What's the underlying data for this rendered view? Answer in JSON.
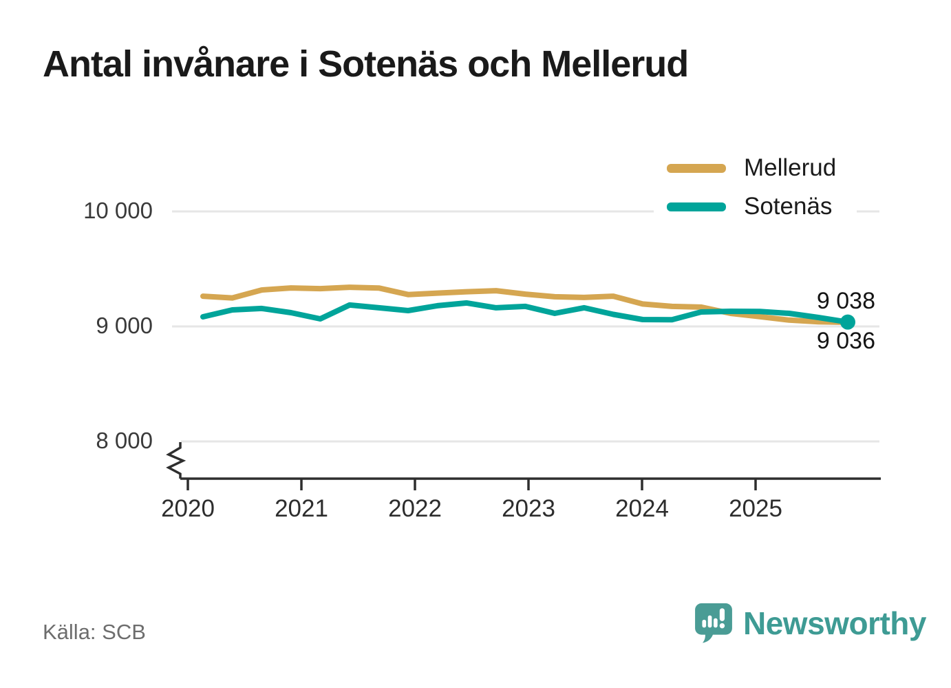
{
  "title": "Antal invånare i Sotenäs och Mellerud",
  "source": "Källa: SCB",
  "brand": {
    "name": "Newsworthy",
    "text_color": "#3E9B94",
    "bubble_color": "#4A9C95",
    "logo_icon": "speech-bubble-bar-chart-exclamation"
  },
  "end_labels": {
    "top": "9 038",
    "bottom": "9 036"
  },
  "chart_data": {
    "type": "line",
    "title": "Antal invånare i Sotenäs och Mellerud",
    "x": [
      "2020-K1",
      "2020-K2",
      "2020-K3",
      "2020-K4",
      "2021-K1",
      "2021-K2",
      "2021-K3",
      "2021-K4",
      "2022-K1",
      "2022-K2",
      "2022-K3",
      "2022-K4",
      "2023-K1",
      "2023-K2",
      "2023-K3",
      "2023-K4",
      "2024-K1",
      "2024-K2",
      "2024-K3",
      "2024-K4",
      "2025-K1",
      "2025-K2",
      "2025-K3"
    ],
    "series": [
      {
        "name": "Mellerud",
        "color": "#D5A651",
        "end_label": "9 036",
        "values": [
          9263,
          9248,
          9317,
          9335,
          9329,
          9341,
          9334,
          9277,
          9290,
          9302,
          9311,
          9281,
          9258,
          9252,
          9263,
          9195,
          9174,
          9168,
          9114,
          9085,
          9055,
          9040,
          9036
        ]
      },
      {
        "name": "Sotenäs",
        "color": "#00A49A",
        "end_label": "9 038",
        "end_dot": true,
        "values": [
          9084,
          9144,
          9156,
          9120,
          9066,
          9186,
          9162,
          9138,
          9180,
          9204,
          9162,
          9174,
          9114,
          9162,
          9105,
          9060,
          9058,
          9126,
          9132,
          9130,
          9114,
          9078,
          9038
        ]
      }
    ],
    "y_ticks": [
      {
        "value": 10000,
        "label": "10 000"
      },
      {
        "value": 9000,
        "label": "9 000"
      },
      {
        "value": 8000,
        "label": "8 000"
      }
    ],
    "x_ticks": [
      "2020",
      "2021",
      "2022",
      "2023",
      "2024",
      "2025"
    ],
    "ylim": [
      8000,
      10000
    ],
    "axis_break": true,
    "grid": "horizontal",
    "grid_color": "#E6E6E6",
    "axis_color": "#2e2e2e",
    "legend_position": "top-right"
  }
}
